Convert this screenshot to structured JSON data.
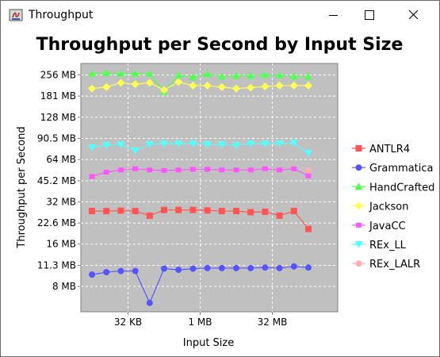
{
  "window": {
    "title": "Throughput"
  },
  "chart_data": {
    "type": "line",
    "title": "Throughput per Second by Input Size",
    "xlabel": "Input Size",
    "ylabel": "Throughput per Second",
    "y_scale": "log2",
    "y_ticks": [
      {
        "label": "8 MB",
        "value": 8
      },
      {
        "label": "11.3 MB",
        "value": 11.3
      },
      {
        "label": "16 MB",
        "value": 16
      },
      {
        "label": "22.6 MB",
        "value": 22.6
      },
      {
        "label": "32 MB",
        "value": 32
      },
      {
        "label": "45.2 MB",
        "value": 45.2
      },
      {
        "label": "64 MB",
        "value": 64
      },
      {
        "label": "90.5 MB",
        "value": 90.5
      },
      {
        "label": "128 MB",
        "value": 128
      },
      {
        "label": "181 MB",
        "value": 181
      },
      {
        "label": "256 MB",
        "value": 256
      }
    ],
    "x_ticks": [
      {
        "label": "32 KB",
        "index": 2.5
      },
      {
        "label": "1 MB",
        "index": 7.5
      },
      {
        "label": "32 MB",
        "index": 12.5
      }
    ],
    "grid": true,
    "legend_position": "right",
    "series": [
      {
        "name": "ANTLR4",
        "color": "#ff5555",
        "marker": "square",
        "values": [
          27.5,
          27.5,
          27.7,
          27.5,
          25.5,
          28,
          28,
          28,
          27.8,
          27.5,
          27.5,
          27,
          27.2,
          25.5,
          27.5,
          20.5
        ]
      },
      {
        "name": "Grammatica",
        "color": "#5555ff",
        "marker": "circle",
        "values": [
          9.7,
          10.1,
          10.3,
          10.3,
          6.1,
          10.7,
          10.5,
          10.7,
          10.8,
          10.8,
          10.8,
          10.8,
          10.9,
          10.8,
          11.1,
          10.9
        ]
      },
      {
        "name": "HandCrafted",
        "color": "#55ff55",
        "marker": "triangle-up",
        "values": [
          262,
          265,
          262,
          262,
          262,
          195,
          255,
          248,
          260,
          250,
          253,
          253,
          257,
          255,
          250,
          250
        ]
      },
      {
        "name": "Jackson",
        "color": "#ffff55",
        "marker": "diamond",
        "values": [
          205,
          210,
          225,
          220,
          225,
          200,
          228,
          215,
          215,
          210,
          205,
          208,
          212,
          215,
          215,
          215
        ]
      },
      {
        "name": "JavaCC",
        "color": "#ff55ff",
        "marker": "square-small",
        "values": [
          48.5,
          52,
          54,
          55,
          54,
          53.5,
          54,
          54.5,
          54.5,
          54,
          54,
          54,
          55,
          54,
          55,
          49
        ]
      },
      {
        "name": "REx_LL",
        "color": "#55ffff",
        "marker": "triangle-down",
        "values": [
          78,
          81,
          82,
          74,
          82,
          83,
          83,
          83,
          82,
          82,
          81,
          83,
          83,
          83,
          84,
          71
        ]
      },
      {
        "name": "REx_LALR",
        "color": "#ffafaf",
        "marker": "circle",
        "values": [
          null,
          null,
          null,
          null,
          null,
          null,
          null,
          null,
          null,
          null,
          null,
          null,
          null,
          null,
          null,
          53.5
        ]
      }
    ]
  }
}
